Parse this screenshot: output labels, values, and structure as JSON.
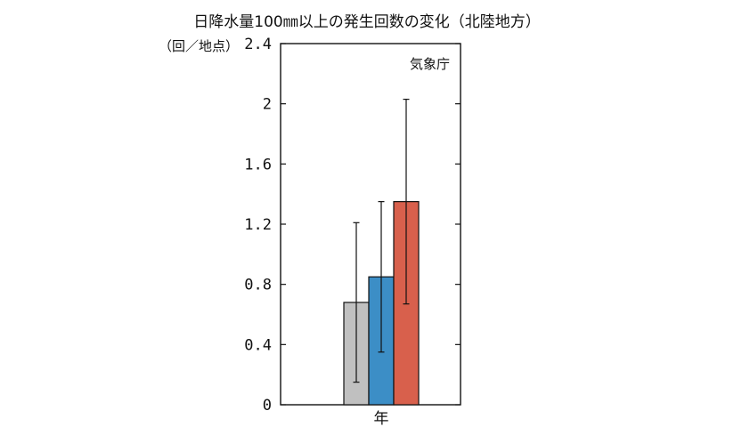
{
  "chart_data": {
    "type": "bar",
    "title": "日降水量100㎜以上の発生回数の変化（北陸地方）",
    "ylabel": "（回／地点）",
    "source_label": "気象庁",
    "categories": [
      "年"
    ],
    "xlabel": "",
    "ylim": [
      0,
      2.4
    ],
    "yticks": [
      "0",
      "0.4",
      "0.8",
      "1.2",
      "1.6",
      "2",
      "2.4"
    ],
    "series": [
      {
        "values": [
          0.68
        ],
        "error": [
          [
            0.15,
            1.21
          ]
        ],
        "color": "#c0c0c0"
      },
      {
        "values": [
          0.85
        ],
        "error": [
          [
            0.35,
            1.35
          ]
        ],
        "color": "#3c8ec6"
      },
      {
        "values": [
          1.35
        ],
        "error": [
          [
            0.67,
            2.03
          ]
        ],
        "color": "#d8604c"
      }
    ],
    "grid": false,
    "legend": "none"
  }
}
